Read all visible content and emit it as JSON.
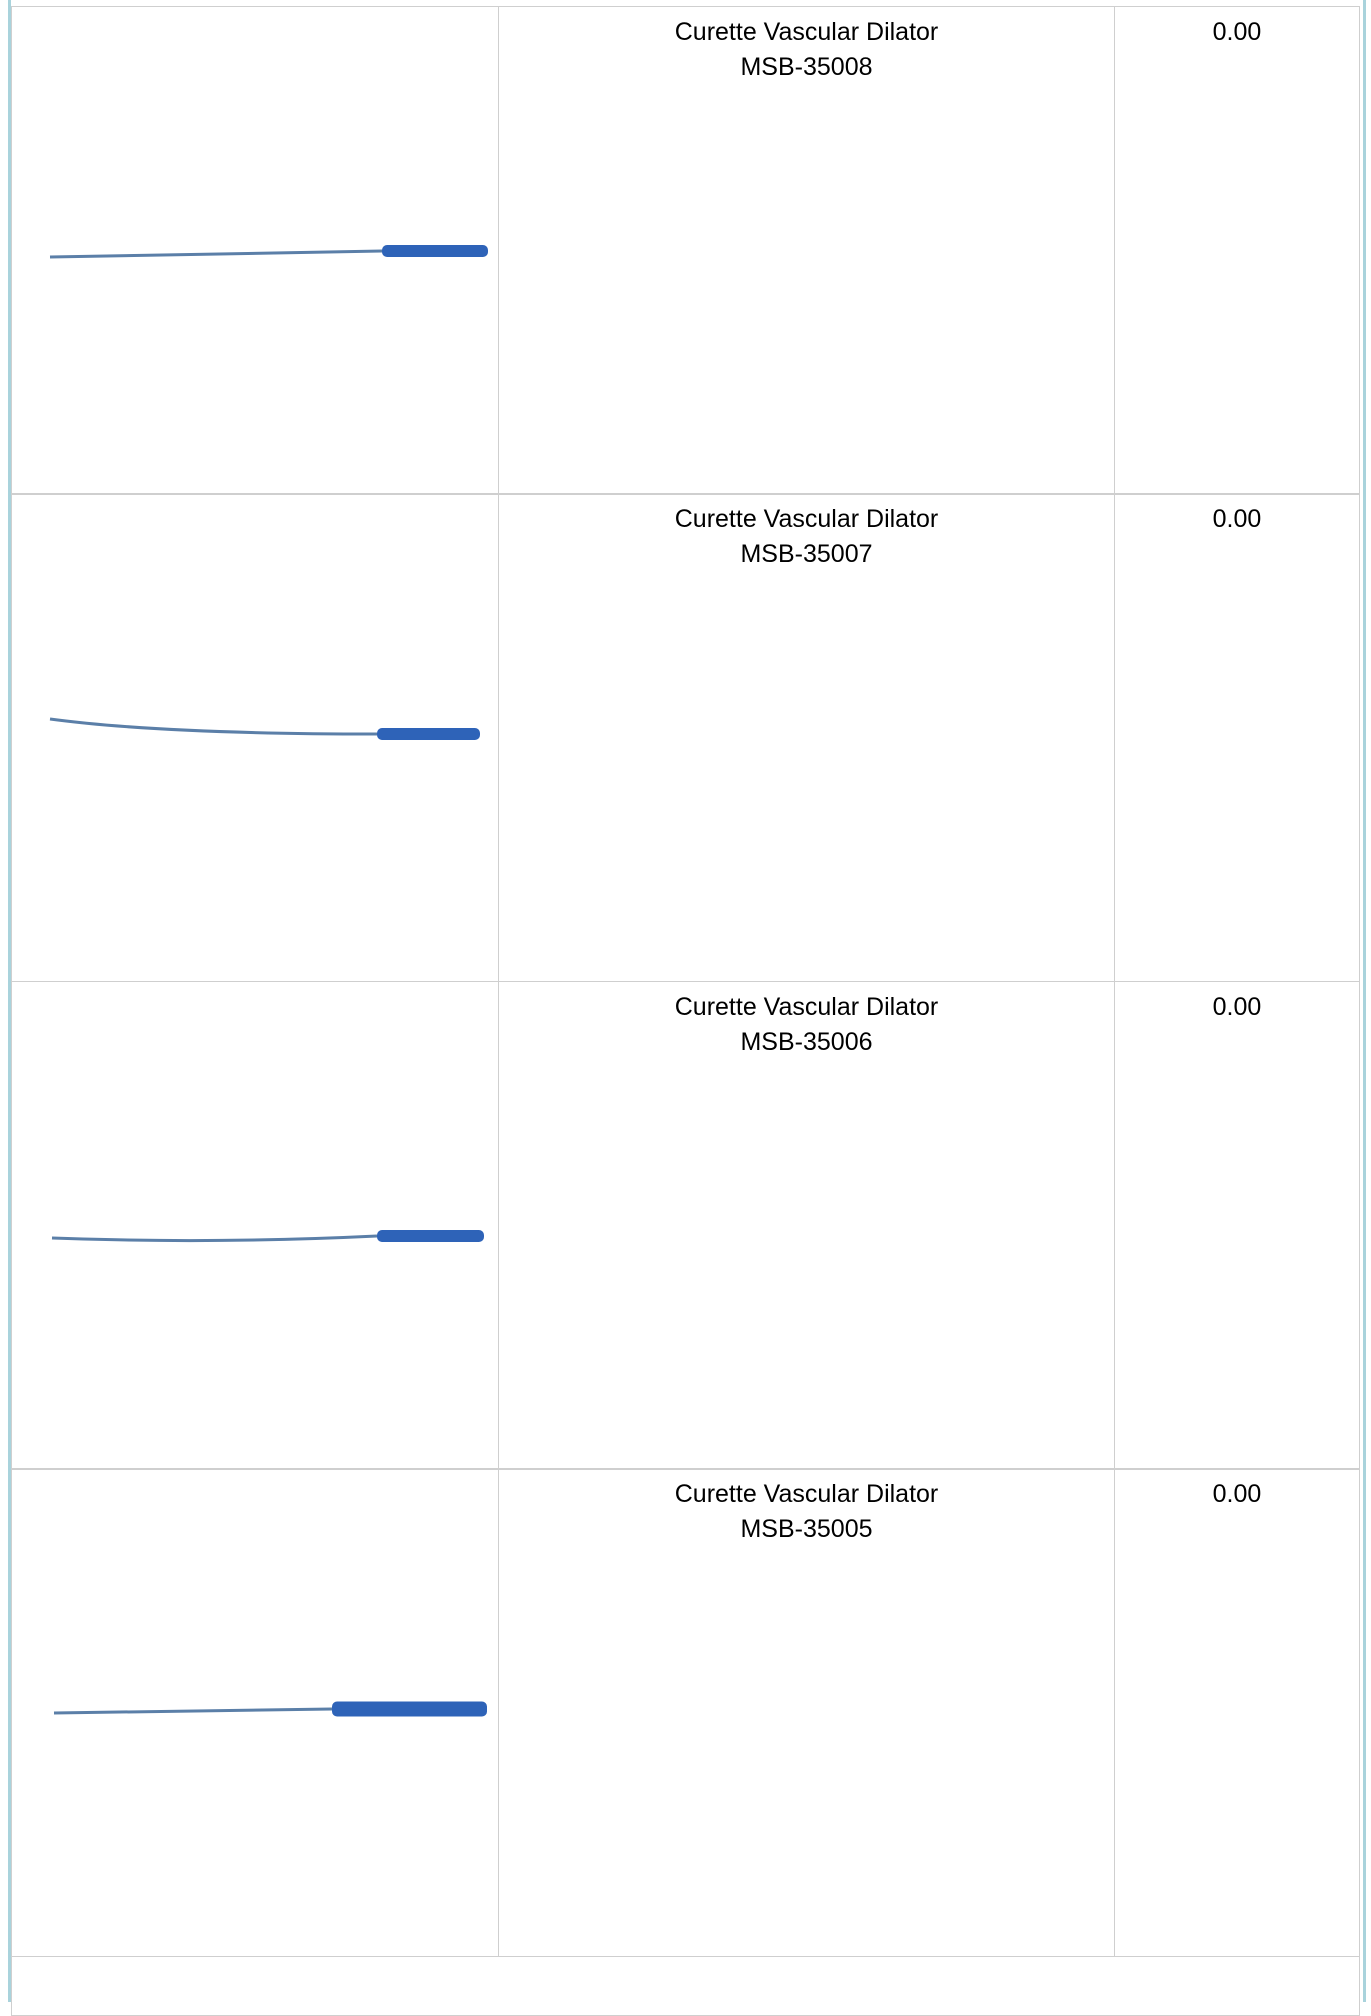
{
  "rows": [
    {
      "name": "Curette Vascular Dilator",
      "code": "MSB-35008",
      "price": "0.00"
    },
    {
      "name": "Curette Vascular Dilator",
      "code": "MSB-35007",
      "price": "0.00"
    },
    {
      "name": "Curette Vascular Dilator",
      "code": "MSB-35006",
      "price": "0.00"
    },
    {
      "name": "Curette Vascular Dilator",
      "code": "MSB-35005",
      "price": "0.00"
    }
  ]
}
